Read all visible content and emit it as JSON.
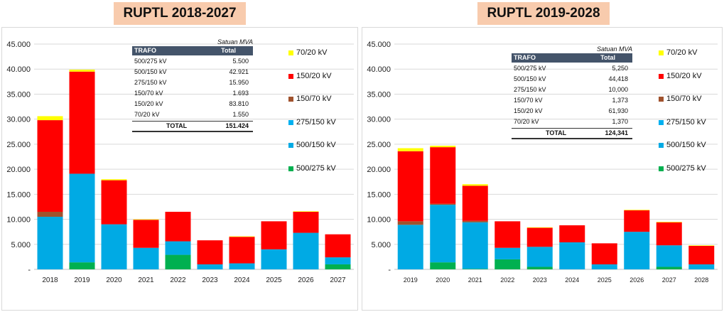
{
  "titles": {
    "left": "RUPTL 2018-2027",
    "right": "RUPTL 2019-2028"
  },
  "colors": {
    "70_20": "#ffff00",
    "150_20": "#ff0000",
    "150_70": "#a0522d",
    "275_150": "#00b0f0",
    "500_150": "#00aae4",
    "500_275": "#00b050"
  },
  "chart_data": [
    {
      "type": "bar",
      "stacked": true,
      "title": "RUPTL 2018-2027",
      "categories": [
        "2018",
        "2019",
        "2020",
        "2021",
        "2022",
        "2023",
        "2024",
        "2025",
        "2026",
        "2027"
      ],
      "yticks": [
        "45.000",
        "40.000",
        "35.000",
        "30.000",
        "25.000",
        "20.000",
        "15.000",
        "10.000",
        "5.000",
        "-"
      ],
      "ylim": [
        0,
        45000
      ],
      "legend_position": "right",
      "series": [
        {
          "name": "500/275 kV",
          "color": "#00b050",
          "values": [
            0,
            1400,
            0,
            0,
            2900,
            0,
            0,
            0,
            0,
            1000
          ]
        },
        {
          "name": "500/150 kV",
          "color": "#00aae4",
          "values": [
            10500,
            17700,
            9000,
            4300,
            2700,
            1000,
            1200,
            4000,
            7300,
            1400
          ]
        },
        {
          "name": "275/150 kV",
          "color": "#00b0f0",
          "values": [
            0,
            0,
            0,
            0,
            0,
            0,
            0,
            0,
            0,
            0
          ]
        },
        {
          "name": "150/70 kV",
          "color": "#a0522d",
          "values": [
            1000,
            0,
            0,
            0,
            0,
            0,
            0,
            0,
            0,
            0
          ]
        },
        {
          "name": "150/20 kV",
          "color": "#ff0000",
          "values": [
            18300,
            20400,
            8800,
            5600,
            5900,
            4800,
            5300,
            5600,
            4200,
            4600
          ]
        },
        {
          "name": "70/20 kV",
          "color": "#ffff00",
          "values": [
            800,
            400,
            200,
            100,
            0,
            0,
            100,
            0,
            100,
            0
          ]
        }
      ],
      "table": {
        "unit": "Satuan MVA",
        "headers": [
          "TRAFO",
          "Total"
        ],
        "rows": [
          [
            "500/275 kV",
            "5.500"
          ],
          [
            "500/150 kV",
            "42.921"
          ],
          [
            "275/150 kV",
            "15.950"
          ],
          [
            "150/70 kV",
            "1.693"
          ],
          [
            "150/20 kV",
            "83.810"
          ],
          [
            "70/20 kV",
            "1.550"
          ]
        ],
        "total": [
          "TOTAL",
          "151.424"
        ]
      }
    },
    {
      "type": "bar",
      "stacked": true,
      "title": "RUPTL 2019-2028",
      "categories": [
        "2019",
        "2020",
        "2021",
        "2022",
        "2023",
        "2024",
        "2025",
        "2026",
        "2027",
        "2028"
      ],
      "yticks": [
        "45.000",
        "40.000",
        "35.000",
        "30.000",
        "25.000",
        "20.000",
        "15.000",
        "10.000",
        "5.000",
        "-"
      ],
      "ylim": [
        0,
        45000
      ],
      "legend_position": "right",
      "series": [
        {
          "name": "500/275 kV",
          "color": "#00b050",
          "values": [
            0,
            1400,
            100,
            2000,
            500,
            0,
            0,
            0,
            500,
            0
          ]
        },
        {
          "name": "500/150 kV",
          "color": "#00aae4",
          "values": [
            8900,
            11500,
            9300,
            2300,
            4000,
            5400,
            1000,
            7500,
            4300,
            1000
          ]
        },
        {
          "name": "275/150 kV",
          "color": "#00b0f0",
          "values": [
            0,
            0,
            0,
            0,
            0,
            0,
            0,
            0,
            0,
            0
          ]
        },
        {
          "name": "150/70 kV",
          "color": "#a0522d",
          "values": [
            700,
            200,
            300,
            0,
            0,
            0,
            0,
            0,
            0,
            0
          ]
        },
        {
          "name": "150/20 kV",
          "color": "#ff0000",
          "values": [
            14000,
            11300,
            7000,
            5300,
            3800,
            3400,
            4200,
            4300,
            4600,
            3700
          ]
        },
        {
          "name": "70/20 kV",
          "color": "#ffff00",
          "values": [
            600,
            300,
            300,
            0,
            100,
            0,
            0,
            100,
            100,
            100
          ]
        }
      ],
      "table": {
        "unit": "Satuan MVA",
        "headers": [
          "TRAFO",
          "Total"
        ],
        "rows": [
          [
            "500/275 kV",
            "5,250"
          ],
          [
            "500/150 kV",
            "44,418"
          ],
          [
            "275/150 kV",
            "10,000"
          ],
          [
            "150/70 kV",
            "1,373"
          ],
          [
            "150/20 kV",
            "61,930"
          ],
          [
            "70/20 kV",
            "1,370"
          ]
        ],
        "total": [
          "TOTAL",
          "124,341"
        ]
      }
    }
  ],
  "legend": [
    "70/20 kV",
    "150/20 kV",
    "150/70 kV",
    "275/150 kV",
    "500/150 kV",
    "500/275 kV"
  ],
  "legend_colors": [
    "#ffff00",
    "#ff0000",
    "#a0522d",
    "#00b0f0",
    "#00aae4",
    "#00b050"
  ]
}
